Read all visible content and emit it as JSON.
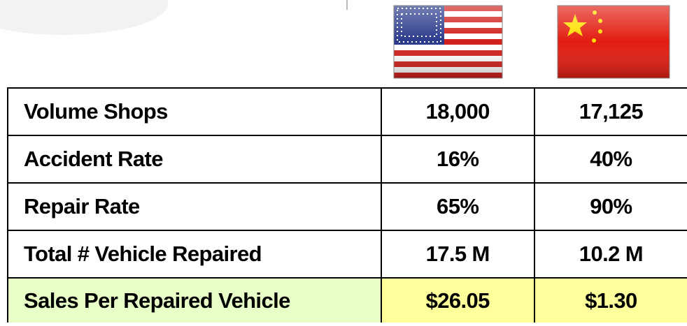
{
  "table": {
    "rows": [
      [
        "Volume Shops",
        "18,000",
        "17,125"
      ],
      [
        "Accident Rate",
        "16%",
        "40%"
      ],
      [
        "Repair Rate",
        "65%",
        "90%"
      ],
      [
        "Total # Vehicle Repaired",
        "17.5 M",
        "10.2 M"
      ],
      [
        "Sales Per Repaired Vehicle",
        "$26.05",
        "$1.30"
      ]
    ]
  }
}
